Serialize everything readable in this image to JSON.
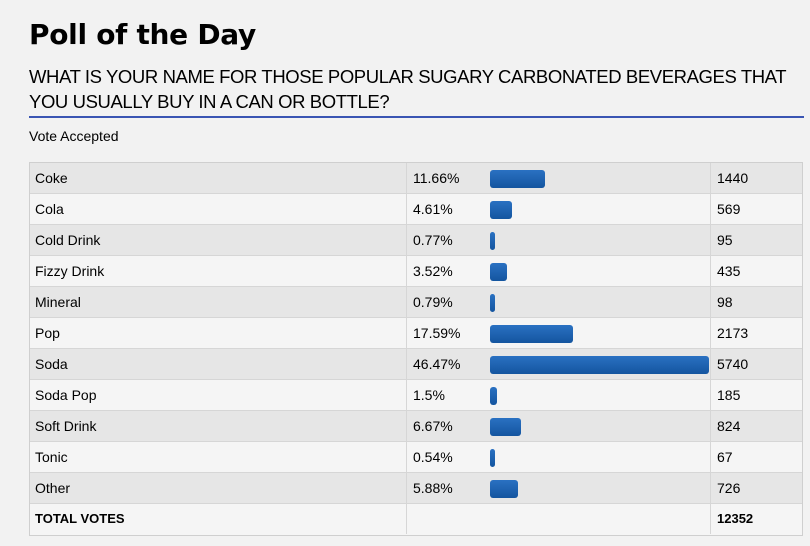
{
  "poll": {
    "title": "Poll of the Day",
    "question": "WHAT IS YOUR NAME FOR THOSE POPULAR SUGARY CARBONATED BEVERAGES THAT YOU USUALLY BUY IN A CAN OR BOTTLE?",
    "status": "Vote Accepted",
    "bar_color": "#1a5fae",
    "rule_color": "#3a55b3",
    "results": [
      {
        "label": "Coke",
        "percent": "11.66%",
        "share": 0.1166,
        "votes": "1440"
      },
      {
        "label": "Cola",
        "percent": "4.61%",
        "share": 0.0461,
        "votes": "569"
      },
      {
        "label": "Cold Drink",
        "percent": "0.77%",
        "share": 0.0077,
        "votes": "95"
      },
      {
        "label": "Fizzy Drink",
        "percent": "3.52%",
        "share": 0.0352,
        "votes": "435"
      },
      {
        "label": "Mineral",
        "percent": "0.79%",
        "share": 0.0079,
        "votes": "98"
      },
      {
        "label": "Pop",
        "percent": "17.59%",
        "share": 0.1759,
        "votes": "2173"
      },
      {
        "label": "Soda",
        "percent": "46.47%",
        "share": 0.4647,
        "votes": "5740"
      },
      {
        "label": "Soda Pop",
        "percent": "1.5%",
        "share": 0.015,
        "votes": "185"
      },
      {
        "label": "Soft Drink",
        "percent": "6.67%",
        "share": 0.0667,
        "votes": "824"
      },
      {
        "label": "Tonic",
        "percent": "0.54%",
        "share": 0.0054,
        "votes": "67"
      },
      {
        "label": "Other",
        "percent": "5.88%",
        "share": 0.0588,
        "votes": "726"
      }
    ],
    "total_label": "TOTAL VOTES",
    "total_votes": "12352"
  }
}
